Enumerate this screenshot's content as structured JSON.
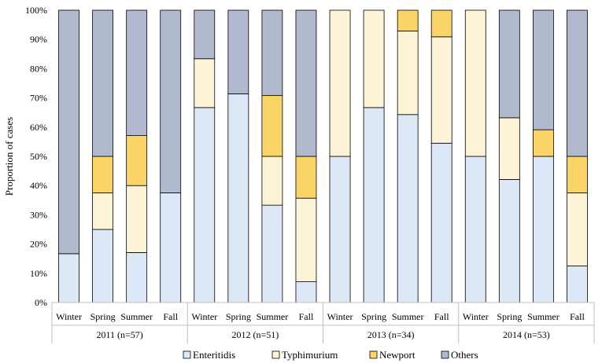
{
  "chart_data": {
    "type": "stacked-bar",
    "title": "",
    "xlabel": "",
    "ylabel": "Proportion of cases",
    "ylim": [
      0,
      100
    ],
    "y_ticks": [
      "0%",
      "10%",
      "20%",
      "30%",
      "40%",
      "50%",
      "60%",
      "70%",
      "80%",
      "90%",
      "100%"
    ],
    "grid": false,
    "legend_position": "bottom",
    "series": [
      {
        "name": "Enteritidis",
        "color": "#dce8f6"
      },
      {
        "name": "Typhimurium",
        "color": "#fdf3d6"
      },
      {
        "name": "Newport",
        "color": "#fad466"
      },
      {
        "name": "Others",
        "color": "#b0b9ce"
      }
    ],
    "groups": [
      {
        "label": "2011 (n=57)",
        "bars": [
          {
            "category": "Winter",
            "values": [
              16.7,
              0,
              0,
              83.3
            ]
          },
          {
            "category": "Spring",
            "values": [
              25.0,
              12.5,
              12.5,
              50.0
            ]
          },
          {
            "category": "Summer",
            "values": [
              17.1,
              22.9,
              17.1,
              42.9
            ]
          },
          {
            "category": "Fall",
            "values": [
              37.5,
              0,
              0,
              62.5
            ]
          }
        ]
      },
      {
        "label": "2012 (n=51)",
        "bars": [
          {
            "category": "Winter",
            "values": [
              66.7,
              16.7,
              0,
              16.6
            ]
          },
          {
            "category": "Spring",
            "values": [
              71.4,
              0,
              0,
              28.6
            ]
          },
          {
            "category": "Summer",
            "values": [
              33.3,
              16.7,
              20.8,
              29.2
            ]
          },
          {
            "category": "Fall",
            "values": [
              7.1,
              28.6,
              14.3,
              50.0
            ]
          }
        ]
      },
      {
        "label": "2013 (n=34)",
        "bars": [
          {
            "category": "Winter",
            "values": [
              50.0,
              50.0,
              0,
              0
            ]
          },
          {
            "category": "Spring",
            "values": [
              66.7,
              33.3,
              0,
              0
            ]
          },
          {
            "category": "Summer",
            "values": [
              64.3,
              28.6,
              7.1,
              0
            ]
          },
          {
            "category": "Fall",
            "values": [
              54.5,
              36.4,
              9.1,
              0
            ]
          }
        ]
      },
      {
        "label": "2014 (n=53)",
        "bars": [
          {
            "category": "Winter",
            "values": [
              50.0,
              50.0,
              0,
              0
            ]
          },
          {
            "category": "Spring",
            "values": [
              42.1,
              21.1,
              0,
              36.8
            ]
          },
          {
            "category": "Summer",
            "values": [
              50.0,
              0,
              9.1,
              40.9
            ]
          },
          {
            "category": "Fall",
            "values": [
              12.5,
              25.0,
              12.5,
              50.0
            ]
          }
        ]
      }
    ]
  }
}
